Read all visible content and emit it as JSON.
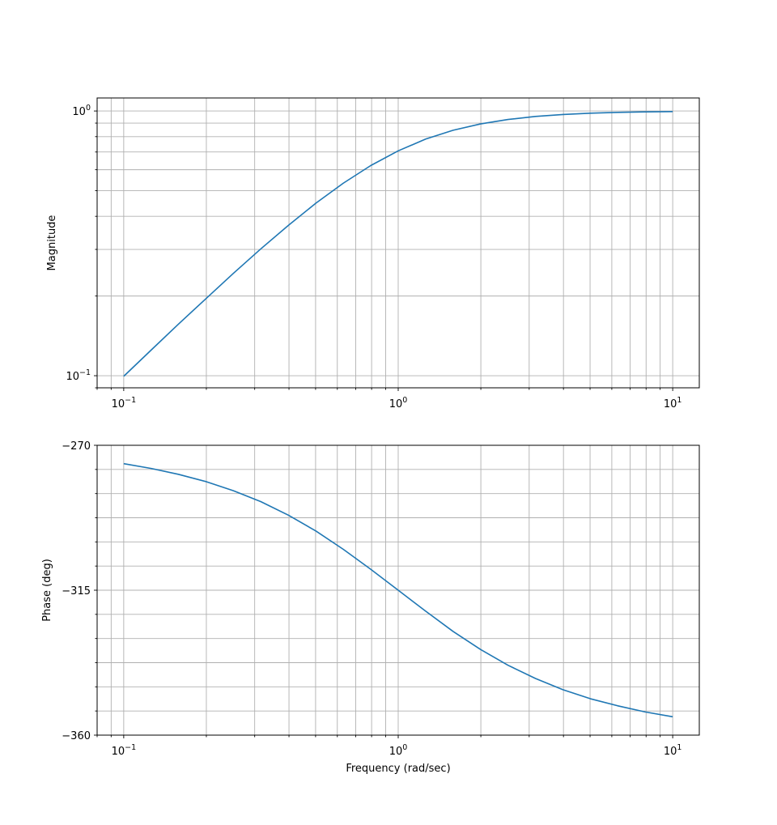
{
  "chart_data": [
    {
      "type": "line",
      "title": "",
      "xlabel": "",
      "ylabel": "Magnitude",
      "xscale": "log",
      "yscale": "log",
      "xlim": [
        0.08,
        12.5
      ],
      "ylim": [
        0.09,
        1.12
      ],
      "grid": true,
      "xticks": [
        {
          "value": 0.1,
          "mant": "10",
          "exp": "−1"
        },
        {
          "value": 1,
          "mant": "10",
          "exp": "0"
        },
        {
          "value": 10,
          "mant": "10",
          "exp": "1"
        }
      ],
      "yticks": [
        {
          "value": 0.1,
          "mant": "10",
          "exp": "−1"
        },
        {
          "value": 1,
          "mant": "10",
          "exp": "0"
        }
      ],
      "series": [
        {
          "color": "#1f77b4",
          "x": [
            0.1,
            0.126,
            0.158,
            0.2,
            0.251,
            0.316,
            0.398,
            0.501,
            0.631,
            0.794,
            1.0,
            1.259,
            1.585,
            1.995,
            2.512,
            3.162,
            3.981,
            5.012,
            6.31,
            7.943,
            10.0
          ],
          "y": [
            0.0995,
            0.1251,
            0.1564,
            0.1961,
            0.2437,
            0.3015,
            0.3698,
            0.4482,
            0.5337,
            0.622,
            0.7071,
            0.7832,
            0.8458,
            0.8936,
            0.9288,
            0.9535,
            0.9699,
            0.9808,
            0.9878,
            0.9922,
            0.995
          ]
        }
      ]
    },
    {
      "type": "line",
      "title": "",
      "xlabel": "Frequency (rad/sec)",
      "ylabel": "Phase (deg)",
      "xscale": "log",
      "yscale": "linear",
      "xlim": [
        0.08,
        12.5
      ],
      "ylim": [
        -360,
        -270
      ],
      "grid": true,
      "xticks": [
        {
          "value": 0.1,
          "mant": "10",
          "exp": "−1"
        },
        {
          "value": 1,
          "mant": "10",
          "exp": "0"
        },
        {
          "value": 10,
          "mant": "10",
          "exp": "1"
        }
      ],
      "yticks": [
        {
          "value": -270,
          "label": "−270"
        },
        {
          "value": -315,
          "label": "−315"
        },
        {
          "value": -360,
          "label": "−360"
        }
      ],
      "series": [
        {
          "color": "#1f77b4",
          "x": [
            0.1,
            0.126,
            0.158,
            0.2,
            0.251,
            0.316,
            0.398,
            0.501,
            0.631,
            0.794,
            1.0,
            1.259,
            1.585,
            1.995,
            2.512,
            3.162,
            3.981,
            5.012,
            6.31,
            7.943,
            10.0
          ],
          "y": [
            -275.7,
            -277.2,
            -279.0,
            -281.3,
            -284.1,
            -287.5,
            -291.7,
            -296.6,
            -302.3,
            -308.5,
            -315.0,
            -321.5,
            -327.8,
            -333.4,
            -338.3,
            -342.4,
            -345.9,
            -348.7,
            -350.9,
            -352.8,
            -354.3
          ]
        }
      ]
    }
  ]
}
